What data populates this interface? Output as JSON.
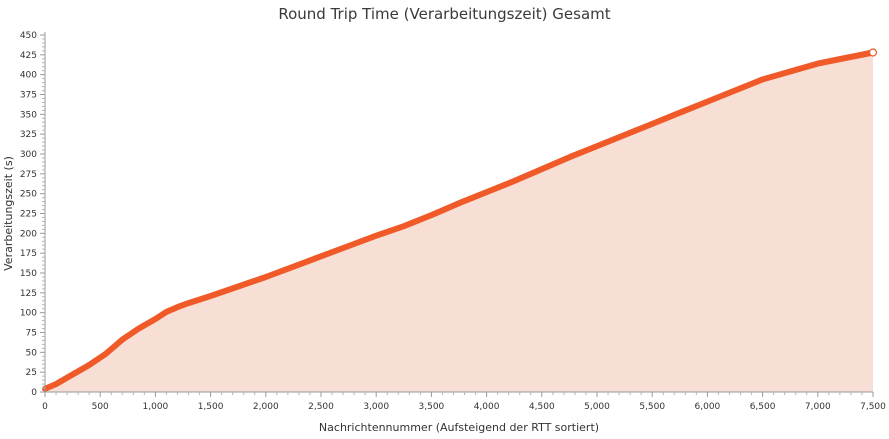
{
  "chart_data": {
    "type": "area",
    "title": "Round Trip Time (Verarbeitungszeit) Gesamt",
    "xlabel": "Nachrichtennummer (Aufsteigend der RTT sortiert)",
    "ylabel": "Verarbeitungszeit (s)",
    "xlim": [
      0,
      7500
    ],
    "ylim": [
      0,
      450
    ],
    "x_ticks": [
      "0",
      "500",
      "1,000",
      "1,500",
      "2,000",
      "2,500",
      "3,000",
      "3,500",
      "4,000",
      "4,500",
      "5,000",
      "5,500",
      "6,000",
      "6,500",
      "7,000",
      "7,500"
    ],
    "y_ticks": [
      "0",
      "25",
      "50",
      "75",
      "100",
      "125",
      "150",
      "175",
      "200",
      "225",
      "250",
      "275",
      "300",
      "325",
      "350",
      "375",
      "400",
      "425",
      "450"
    ],
    "grid": false,
    "line_color": "#f05a28",
    "fill_color": "#f8dfd6",
    "series": [
      {
        "x": [
          0,
          100,
          250,
          400,
          550,
          700,
          850,
          1000,
          1100,
          1200,
          1300,
          1500,
          1750,
          2000,
          2250,
          2500,
          2750,
          3000,
          3250,
          3500,
          3750,
          4000,
          4250,
          4500,
          4750,
          5000,
          5250,
          5500,
          5750,
          6000,
          6250,
          6500,
          6750,
          7000,
          7250,
          7500
        ],
        "y": [
          4,
          10,
          22,
          34,
          48,
          66,
          80,
          92,
          101,
          107,
          112,
          121,
          133,
          145,
          158,
          171,
          184,
          197,
          209,
          223,
          238,
          252,
          266,
          281,
          296,
          310,
          324,
          338,
          352,
          366,
          380,
          394,
          404,
          414,
          421,
          428
        ]
      }
    ]
  }
}
